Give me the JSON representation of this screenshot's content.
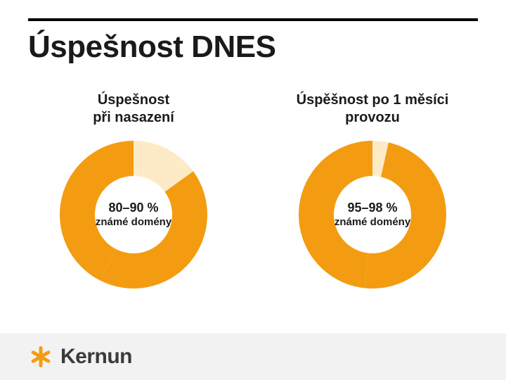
{
  "page": {
    "title": "Úspešnost DNES",
    "background_color": "#ffffff",
    "rule_color": "#000000",
    "title_fontsize": 44,
    "title_color": "#1a1a1a"
  },
  "charts": [
    {
      "heading_line1": "Úspešnost",
      "heading_line2": "při nasazení",
      "heading_fontsize": 20,
      "type": "donut",
      "value_pct_low": 80,
      "value_pct_high": 90,
      "mean_pct": 85,
      "slice_colors": {
        "known": "#f39c12",
        "unknown": "#fdebc8"
      },
      "inner_radius": 55,
      "outer_radius": 105,
      "start_angle_deg": 0,
      "center_pct_text": "80–90 %",
      "center_sub_text": "známé domény",
      "center_pct_fontsize": 18,
      "center_sub_fontsize": 15,
      "center_text_color": "#1a1a1a"
    },
    {
      "heading_line1": "Úspěšnost po 1 měsíci",
      "heading_line2": "provozu",
      "heading_fontsize": 20,
      "type": "donut",
      "value_pct_low": 95,
      "value_pct_high": 98,
      "mean_pct": 96.5,
      "slice_colors": {
        "known": "#f39c12",
        "unknown": "#fdebc8"
      },
      "inner_radius": 55,
      "outer_radius": 105,
      "start_angle_deg": 0,
      "center_pct_text": "95–98 %",
      "center_sub_text": "známé domény",
      "center_pct_fontsize": 18,
      "center_sub_fontsize": 15,
      "center_text_color": "#1a1a1a"
    }
  ],
  "footer": {
    "brand_text": "Kernun",
    "brand_text_color": "#3a3a3a",
    "brand_text_fontsize": 30,
    "mark_color": "#f39c12",
    "footer_bar_color": "#f2f2f2",
    "footer_bar_height": 66
  }
}
